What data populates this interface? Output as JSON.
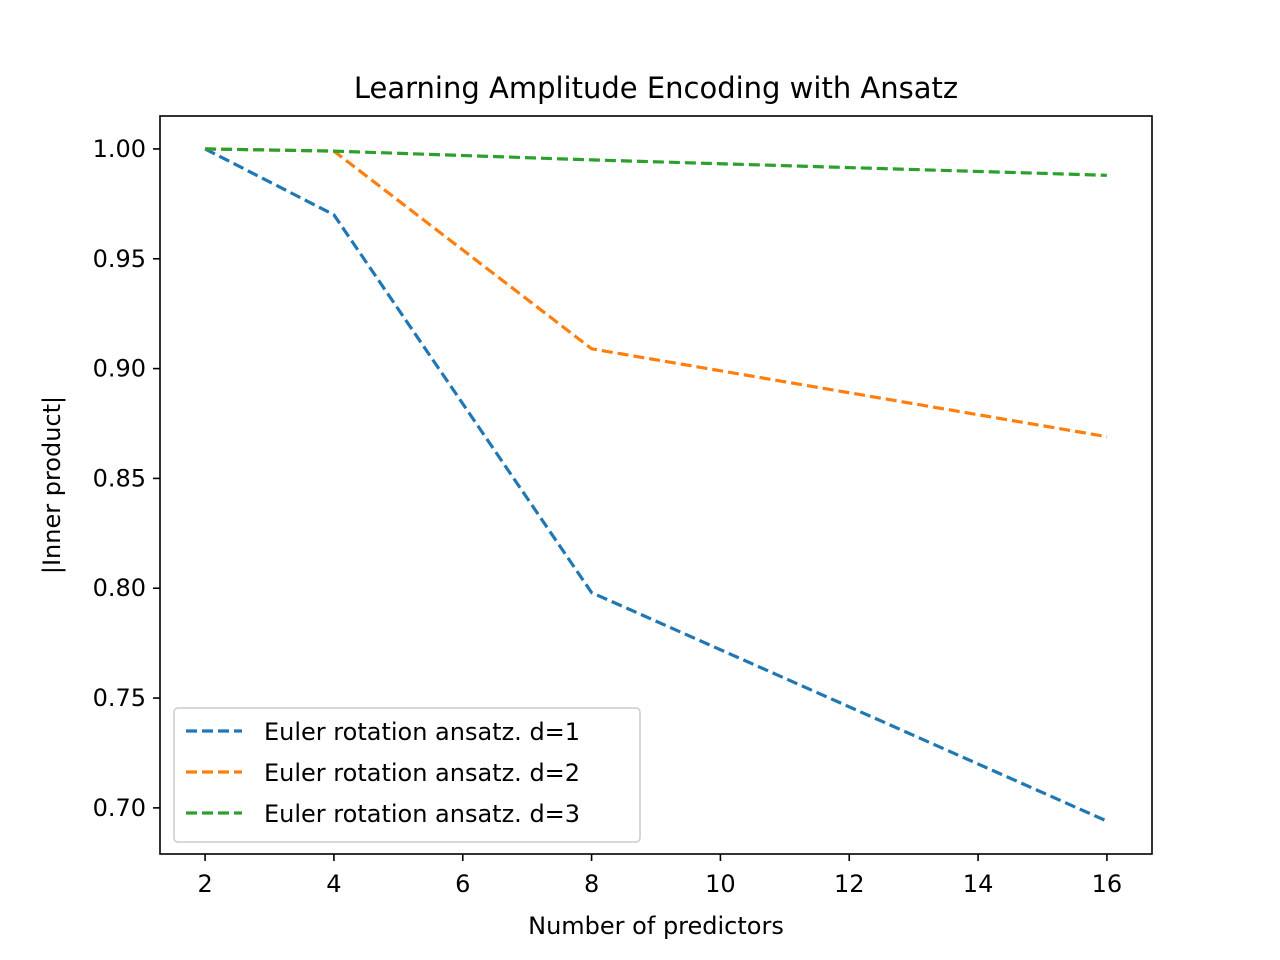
{
  "chart_data": {
    "type": "line",
    "title": "Learning Amplitude Encoding with Ansatz",
    "xlabel": "Number of predictors",
    "ylabel": "|Inner product|",
    "xlim": [
      1.3,
      16.7
    ],
    "ylim": [
      0.679,
      1.015
    ],
    "xticks": [
      2,
      4,
      6,
      8,
      10,
      12,
      14,
      16
    ],
    "xtick_labels": [
      "2",
      "4",
      "6",
      "8",
      "10",
      "12",
      "14",
      "16"
    ],
    "yticks": [
      0.7,
      0.75,
      0.8,
      0.85,
      0.9,
      0.95,
      1.0
    ],
    "ytick_labels": [
      "0.70",
      "0.75",
      "0.80",
      "0.85",
      "0.90",
      "0.95",
      "1.00"
    ],
    "grid": false,
    "legend_position": "lower-left",
    "x": [
      2,
      4,
      8,
      16
    ],
    "series": [
      {
        "name": "Euler rotation ansatz. d=1",
        "values": [
          1.0,
          0.97,
          0.798,
          0.694
        ],
        "color": "#1f77b4",
        "style": "dashed"
      },
      {
        "name": "Euler rotation ansatz. d=2",
        "values": [
          1.0,
          0.999,
          0.909,
          0.869
        ],
        "color": "#ff7f0e",
        "style": "dashed"
      },
      {
        "name": "Euler rotation ansatz. d=3",
        "values": [
          1.0,
          0.999,
          0.995,
          0.988
        ],
        "color": "#2ca02c",
        "style": "dashed"
      }
    ]
  }
}
